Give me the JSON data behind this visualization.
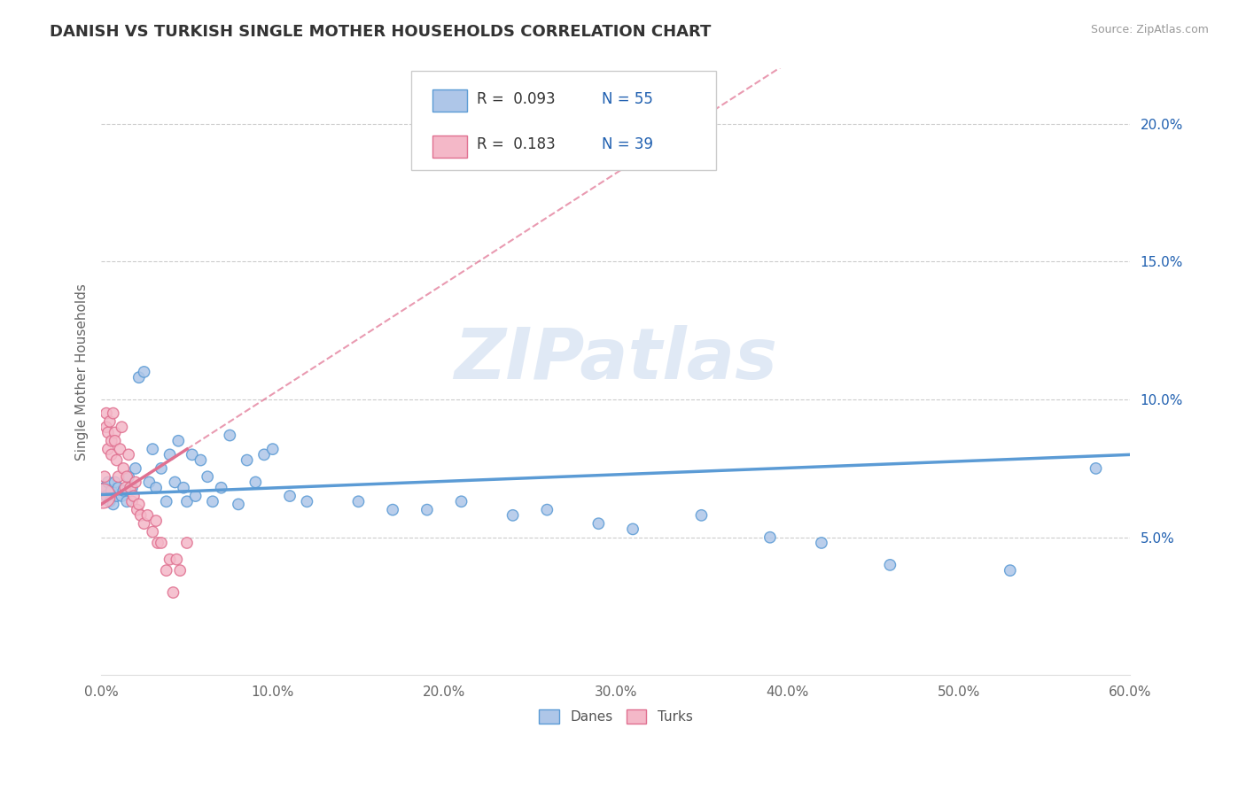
{
  "title": "DANISH VS TURKISH SINGLE MOTHER HOUSEHOLDS CORRELATION CHART",
  "source": "Source: ZipAtlas.com",
  "ylabel": "Single Mother Households",
  "xlim": [
    0.0,
    0.6
  ],
  "ylim": [
    0.0,
    0.22
  ],
  "xticks": [
    0.0,
    0.1,
    0.2,
    0.3,
    0.4,
    0.5,
    0.6
  ],
  "xticklabels": [
    "0.0%",
    "10.0%",
    "20.0%",
    "30.0%",
    "40.0%",
    "50.0%",
    "60.0%"
  ],
  "yticks_right": [
    0.05,
    0.1,
    0.15,
    0.2
  ],
  "yticklabels_right": [
    "5.0%",
    "10.0%",
    "15.0%",
    "20.0%"
  ],
  "danes_color": "#aec6e8",
  "danes_edge_color": "#5b9bd5",
  "turks_color": "#f4b8c8",
  "turks_edge_color": "#e07090",
  "danes_R": "0.093",
  "danes_N": 55,
  "turks_R": "0.183",
  "turks_N": 39,
  "legend_color": "#2060b0",
  "watermark_text": "ZIPatlas",
  "grid_color": "#cccccc",
  "danes_x": [
    0.002,
    0.003,
    0.004,
    0.005,
    0.006,
    0.007,
    0.008,
    0.009,
    0.01,
    0.012,
    0.013,
    0.015,
    0.016,
    0.018,
    0.02,
    0.022,
    0.025,
    0.028,
    0.03,
    0.032,
    0.035,
    0.038,
    0.04,
    0.043,
    0.045,
    0.048,
    0.05,
    0.053,
    0.055,
    0.058,
    0.062,
    0.065,
    0.07,
    0.075,
    0.08,
    0.085,
    0.09,
    0.095,
    0.1,
    0.11,
    0.12,
    0.15,
    0.17,
    0.19,
    0.21,
    0.24,
    0.26,
    0.29,
    0.31,
    0.35,
    0.39,
    0.42,
    0.46,
    0.53,
    0.58
  ],
  "danes_y": [
    0.068,
    0.065,
    0.07,
    0.063,
    0.067,
    0.062,
    0.07,
    0.065,
    0.068,
    0.065,
    0.067,
    0.063,
    0.072,
    0.068,
    0.075,
    0.108,
    0.11,
    0.07,
    0.082,
    0.068,
    0.075,
    0.063,
    0.08,
    0.07,
    0.085,
    0.068,
    0.063,
    0.08,
    0.065,
    0.078,
    0.072,
    0.063,
    0.068,
    0.087,
    0.062,
    0.078,
    0.07,
    0.08,
    0.082,
    0.065,
    0.063,
    0.063,
    0.06,
    0.06,
    0.063,
    0.058,
    0.06,
    0.055,
    0.053,
    0.058,
    0.05,
    0.048,
    0.04,
    0.038,
    0.075
  ],
  "danes_sizes": [
    80,
    80,
    80,
    80,
    80,
    80,
    80,
    80,
    80,
    80,
    80,
    80,
    80,
    80,
    80,
    80,
    80,
    80,
    80,
    80,
    80,
    80,
    80,
    80,
    80,
    80,
    80,
    80,
    80,
    80,
    80,
    80,
    80,
    80,
    80,
    80,
    80,
    80,
    80,
    80,
    80,
    80,
    80,
    80,
    80,
    80,
    80,
    80,
    80,
    80,
    80,
    80,
    80,
    80,
    80
  ],
  "turks_x": [
    0.001,
    0.002,
    0.003,
    0.003,
    0.004,
    0.004,
    0.005,
    0.006,
    0.006,
    0.007,
    0.008,
    0.008,
    0.009,
    0.01,
    0.011,
    0.012,
    0.013,
    0.014,
    0.015,
    0.016,
    0.017,
    0.018,
    0.019,
    0.02,
    0.021,
    0.022,
    0.023,
    0.025,
    0.027,
    0.03,
    0.032,
    0.033,
    0.035,
    0.038,
    0.04,
    0.042,
    0.044,
    0.046,
    0.05
  ],
  "turks_y": [
    0.065,
    0.072,
    0.09,
    0.095,
    0.088,
    0.082,
    0.092,
    0.085,
    0.08,
    0.095,
    0.088,
    0.085,
    0.078,
    0.072,
    0.082,
    0.09,
    0.075,
    0.068,
    0.072,
    0.08,
    0.068,
    0.063,
    0.065,
    0.07,
    0.06,
    0.062,
    0.058,
    0.055,
    0.058,
    0.052,
    0.056,
    0.048,
    0.048,
    0.038,
    0.042,
    0.03,
    0.042,
    0.038,
    0.048
  ],
  "turks_sizes": [
    400,
    80,
    80,
    80,
    80,
    80,
    80,
    80,
    80,
    80,
    80,
    80,
    80,
    80,
    80,
    80,
    80,
    80,
    80,
    80,
    80,
    80,
    80,
    80,
    80,
    80,
    80,
    80,
    80,
    80,
    80,
    80,
    80,
    80,
    80,
    80,
    80,
    80,
    80
  ],
  "danes_trend_x": [
    0.0,
    0.6
  ],
  "danes_trend_y": [
    0.0655,
    0.08
  ],
  "turks_trend_x": [
    0.0,
    0.05
  ],
  "turks_trend_y": [
    0.062,
    0.082
  ]
}
